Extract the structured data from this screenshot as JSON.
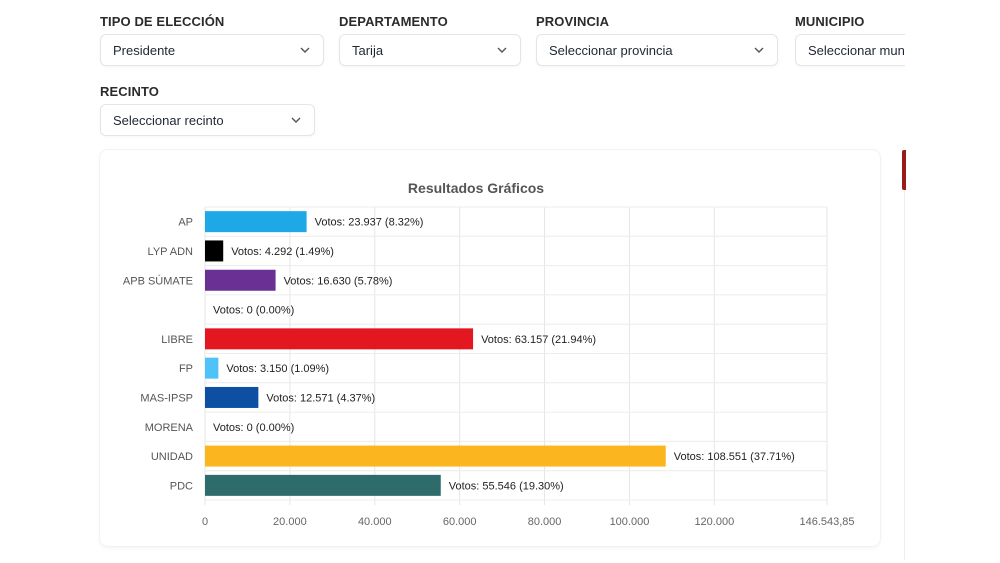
{
  "filters": {
    "tipo": {
      "label": "TIPO DE ELECCIÓN",
      "value": "Presidente"
    },
    "departamento": {
      "label": "DEPARTAMENTO",
      "value": "Tarija"
    },
    "provincia": {
      "label": "PROVINCIA",
      "value": "Seleccionar provincia"
    },
    "municipio": {
      "label": "MUNICIPIO",
      "value": "Seleccionar muni"
    },
    "recinto": {
      "label": "RECINTO",
      "value": "Seleccionar recinto"
    }
  },
  "chart_data": {
    "type": "bar",
    "orientation": "horizontal",
    "title": "Resultados Gráficos",
    "categories": [
      "AP",
      "LYP ADN",
      "APB SÚMATE",
      "",
      "LIBRE",
      "FP",
      "MAS-IPSP",
      "MORENA",
      "UNIDAD",
      "PDC"
    ],
    "values": [
      23937,
      4292,
      16630,
      0,
      63157,
      3150,
      12571,
      0,
      108551,
      55546
    ],
    "data_labels": [
      "Votos: 23.937 (8.32%)",
      "Votos: 4.292 (1.49%)",
      "Votos: 16.630 (5.78%)",
      "Votos: 0 (0.00%)",
      "Votos: 63.157 (21.94%)",
      "Votos: 3.150 (1.09%)",
      "Votos: 12.571 (4.37%)",
      "Votos: 0 (0.00%)",
      "Votos: 108.551 (37.71%)",
      "Votos: 55.546 (19.30%)"
    ],
    "colors": [
      "#1ea8e6",
      "#000000",
      "#6a3093",
      "#9e9e9e",
      "#e3171f",
      "#4fc3f7",
      "#0d4fa3",
      "#8b0000",
      "#fbb51f",
      "#2e6b6b"
    ],
    "xlim": [
      0,
      146543.85
    ],
    "xticks": [
      0,
      20000,
      40000,
      60000,
      80000,
      100000,
      120000,
      146543.85
    ],
    "xtick_labels": [
      "0",
      "20.000",
      "40.000",
      "60.000",
      "80.000",
      "100.000",
      "120.000",
      "146.543,85"
    ],
    "grid": true
  }
}
